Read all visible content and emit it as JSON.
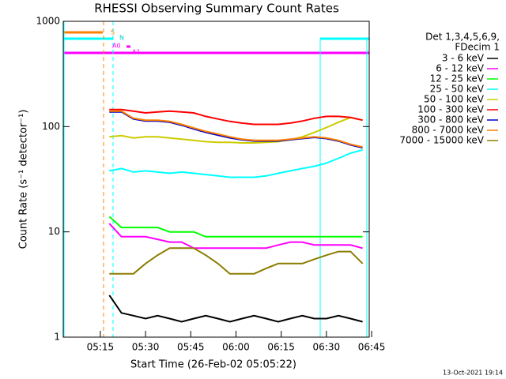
{
  "chart_data": {
    "type": "line",
    "title": "RHESSI Observing Summary Count Rates",
    "y_label": "Count Rate (s⁻¹ detector⁻¹)",
    "x_label": "Start Time (26-Feb-02 05:05:22)",
    "legend_title": [
      "Det 1,3,4,5,6,9,",
      "FDecim 1"
    ],
    "timestamp": "13-Oct-2021 19:14",
    "annotations": [
      "S",
      "N",
      "A0",
      "A1"
    ],
    "log_y": true,
    "xlim": [
      302.7,
      404.2
    ],
    "ylim": [
      1,
      1000
    ],
    "xticks": [
      {
        "value": 315,
        "label": "05:15"
      },
      {
        "value": 330,
        "label": "05:30"
      },
      {
        "value": 345,
        "label": "05:45"
      },
      {
        "value": 360,
        "label": "06:00"
      },
      {
        "value": 375,
        "label": "06:15"
      },
      {
        "value": 390,
        "label": "06:30"
      },
      {
        "value": 405,
        "label": "06:45"
      }
    ],
    "yticks": [
      1,
      10,
      100,
      1000
    ],
    "x": [
      318,
      322,
      326,
      330,
      334,
      338,
      342,
      346,
      350,
      354,
      358,
      362,
      366,
      370,
      374,
      378,
      382,
      386,
      390,
      394,
      398,
      402
    ],
    "series": [
      {
        "name": "3 - 6 keV",
        "color": "#000000",
        "values": [
          2.5,
          1.7,
          1.6,
          1.5,
          1.6,
          1.5,
          1.4,
          1.5,
          1.6,
          1.5,
          1.4,
          1.5,
          1.6,
          1.5,
          1.4,
          1.5,
          1.6,
          1.5,
          1.5,
          1.6,
          1.5,
          1.4
        ]
      },
      {
        "name": "6 - 12 keV",
        "color": "#ff00ff",
        "values": [
          12,
          9,
          9,
          9,
          8.5,
          8,
          8,
          7,
          7,
          7,
          7,
          7,
          7,
          7,
          7.5,
          8,
          8,
          7.5,
          7.5,
          7.5,
          7.5,
          7
        ]
      },
      {
        "name": "12 - 25 keV",
        "color": "#00ff00",
        "values": [
          14,
          11,
          11,
          11,
          11,
          10,
          10,
          10,
          9,
          9,
          9,
          9,
          9,
          9,
          9,
          9,
          9,
          9,
          9,
          9,
          9,
          9
        ]
      },
      {
        "name": "25 - 50 keV",
        "color": "#00ffff",
        "values": [
          38,
          40,
          37,
          38,
          37,
          36,
          37,
          36,
          35,
          34,
          33,
          33,
          33,
          34,
          36,
          38,
          40,
          42,
          45,
          50,
          56,
          60
        ]
      },
      {
        "name": "50 - 100 keV",
        "color": "#cccc00",
        "values": [
          80,
          82,
          78,
          80,
          80,
          78,
          76,
          74,
          72,
          71,
          71,
          70,
          70,
          71,
          72,
          75,
          80,
          88,
          98,
          110,
          122,
          115
        ]
      },
      {
        "name": "100 - 300 keV",
        "color": "#ff0000",
        "values": [
          145,
          145,
          140,
          135,
          138,
          140,
          138,
          135,
          125,
          118,
          112,
          108,
          105,
          105,
          105,
          108,
          113,
          120,
          125,
          125,
          122,
          115
        ]
      },
      {
        "name": "300 - 800 keV",
        "color": "#0000cc",
        "values": [
          138,
          138,
          118,
          113,
          113,
          110,
          103,
          95,
          88,
          83,
          78,
          75,
          73,
          73,
          73,
          75,
          77,
          79,
          77,
          73,
          67,
          63
        ]
      },
      {
        "name": "800 - 7000 keV",
        "color": "#ff8000",
        "values": [
          140,
          140,
          120,
          115,
          115,
          112,
          105,
          97,
          90,
          85,
          80,
          76,
          74,
          74,
          74,
          76,
          78,
          80,
          78,
          74,
          68,
          64
        ]
      },
      {
        "name": "7000 - 15000 keV",
        "color": "#8b7d00",
        "values": [
          4,
          4,
          4,
          5,
          6,
          7,
          7,
          7,
          6,
          5,
          4,
          4,
          4,
          4.5,
          5,
          5,
          5,
          5.5,
          6,
          6.5,
          6.5,
          5
        ]
      }
    ]
  }
}
